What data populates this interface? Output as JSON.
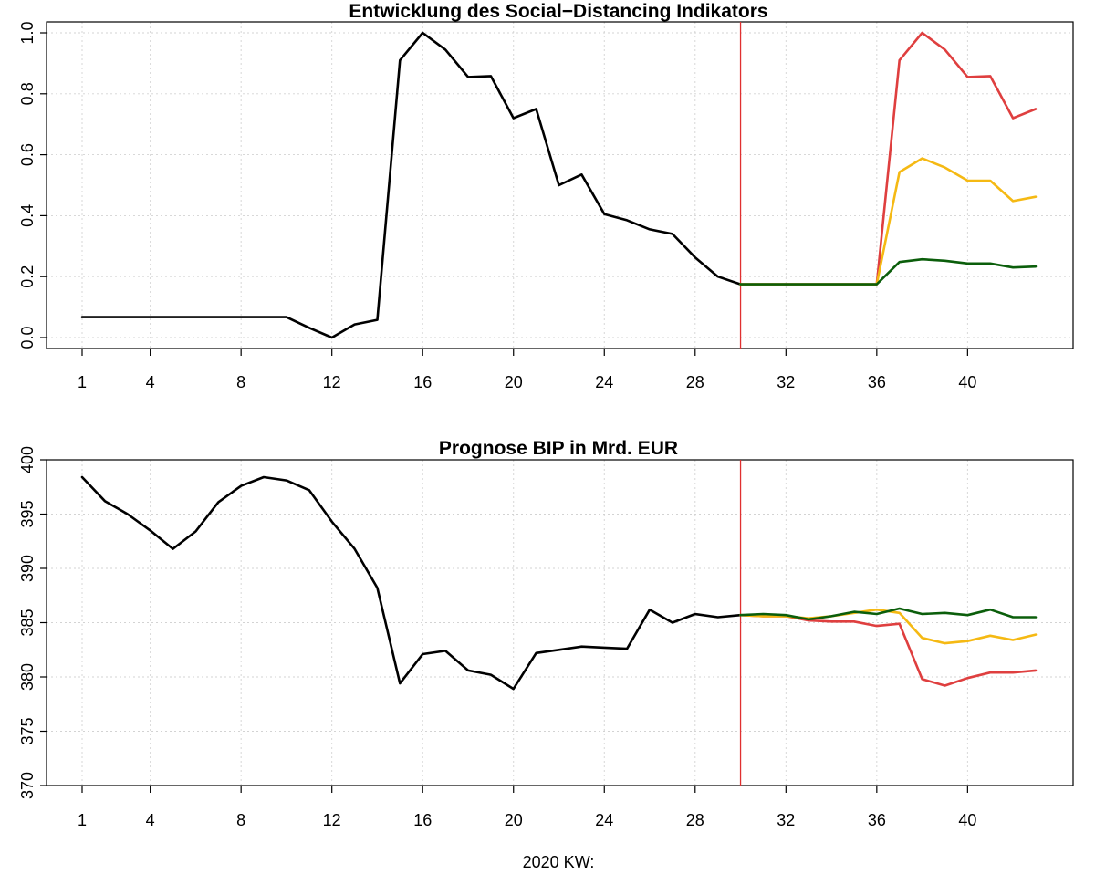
{
  "colors": {
    "history": "#000000",
    "red": "#df3f3f",
    "yellow": "#f5b913",
    "green": "#0b5e0b",
    "vline": "#e03030",
    "grid": "#d3d3d3"
  },
  "xlabel": "2020 KW:",
  "chart_data": [
    {
      "type": "line",
      "title": "Entwicklung des Social−Distancing Indikators",
      "xlim": [
        1,
        43
      ],
      "ylim": [
        0,
        1.0
      ],
      "x_ticks": [
        1,
        4,
        8,
        12,
        16,
        20,
        24,
        28,
        32,
        36,
        40
      ],
      "y_ticks": [
        "0.0",
        "0.2",
        "0.4",
        "0.6",
        "0.8",
        "1.0"
      ],
      "y_tick_values": [
        0,
        0.2,
        0.4,
        0.6,
        0.8,
        1.0
      ],
      "vline_x": 30,
      "grid": true,
      "series": [
        {
          "color_key": "history",
          "x": [
            1,
            2,
            3,
            4,
            5,
            6,
            7,
            8,
            9,
            10,
            11,
            12,
            13,
            14,
            15,
            16,
            17,
            18,
            19,
            20,
            21,
            22,
            23,
            24,
            25,
            26,
            27,
            28,
            29,
            30
          ],
          "values": [
            0.067,
            0.067,
            0.067,
            0.067,
            0.067,
            0.067,
            0.067,
            0.067,
            0.067,
            0.067,
            0.032,
            0.0,
            0.043,
            0.058,
            0.91,
            1.0,
            0.945,
            0.855,
            0.858,
            0.72,
            0.75,
            0.5,
            0.535,
            0.405,
            0.385,
            0.355,
            0.34,
            0.263,
            0.2,
            0.175
          ]
        },
        {
          "color_key": "red",
          "x": [
            30,
            31,
            32,
            33,
            34,
            35,
            36,
            37,
            38,
            39,
            40,
            41,
            42,
            43
          ],
          "values": [
            0.175,
            0.175,
            0.175,
            0.175,
            0.175,
            0.175,
            0.175,
            0.91,
            1.0,
            0.945,
            0.855,
            0.858,
            0.72,
            0.75
          ]
        },
        {
          "color_key": "yellow",
          "x": [
            30,
            31,
            32,
            33,
            34,
            35,
            36,
            37,
            38,
            39,
            40,
            41,
            42,
            43
          ],
          "values": [
            0.175,
            0.175,
            0.175,
            0.175,
            0.175,
            0.175,
            0.175,
            0.543,
            0.588,
            0.558,
            0.515,
            0.515,
            0.448,
            0.462
          ]
        },
        {
          "color_key": "green",
          "x": [
            30,
            31,
            32,
            33,
            34,
            35,
            36,
            37,
            38,
            39,
            40,
            41,
            42,
            43
          ],
          "values": [
            0.175,
            0.175,
            0.175,
            0.175,
            0.175,
            0.175,
            0.175,
            0.248,
            0.257,
            0.252,
            0.243,
            0.243,
            0.23,
            0.233
          ]
        }
      ]
    },
    {
      "type": "line",
      "title": "Prognose BIP in Mrd. EUR",
      "xlim": [
        1,
        43
      ],
      "ylim": [
        370,
        400
      ],
      "x_ticks": [
        1,
        4,
        8,
        12,
        16,
        20,
        24,
        28,
        32,
        36,
        40
      ],
      "y_ticks": [
        "370",
        "375",
        "380",
        "385",
        "390",
        "395",
        "400"
      ],
      "y_tick_values": [
        370,
        375,
        380,
        385,
        390,
        395,
        400
      ],
      "vline_x": 30,
      "grid": true,
      "series": [
        {
          "color_key": "history",
          "x": [
            1,
            2,
            3,
            4,
            5,
            6,
            7,
            8,
            9,
            10,
            11,
            12,
            13,
            14,
            15,
            16,
            17,
            18,
            19,
            20,
            21,
            22,
            23,
            24,
            25,
            26,
            27,
            28,
            29,
            30
          ],
          "values": [
            398.4,
            396.2,
            395.0,
            393.5,
            391.8,
            393.4,
            396.1,
            397.6,
            398.4,
            398.1,
            397.2,
            394.3,
            391.8,
            388.2,
            379.4,
            382.1,
            382.4,
            380.6,
            380.2,
            378.9,
            382.2,
            382.5,
            382.8,
            382.7,
            382.6,
            386.2,
            385.0,
            385.8,
            385.5,
            385.7
          ]
        },
        {
          "color_key": "red",
          "x": [
            30,
            31,
            32,
            33,
            34,
            35,
            36,
            37,
            38,
            39,
            40,
            41,
            42,
            43
          ],
          "values": [
            385.7,
            385.6,
            385.6,
            385.2,
            385.1,
            385.1,
            384.7,
            384.9,
            379.8,
            379.2,
            379.9,
            380.4,
            380.4,
            380.6
          ]
        },
        {
          "color_key": "yellow",
          "x": [
            30,
            31,
            32,
            33,
            34,
            35,
            36,
            37,
            38,
            39,
            40,
            41,
            42,
            43
          ],
          "values": [
            385.7,
            385.6,
            385.6,
            385.4,
            385.6,
            385.9,
            386.2,
            385.9,
            383.6,
            383.1,
            383.3,
            383.8,
            383.4,
            383.9
          ]
        },
        {
          "color_key": "green",
          "x": [
            30,
            31,
            32,
            33,
            34,
            35,
            36,
            37,
            38,
            39,
            40,
            41,
            42,
            43
          ],
          "values": [
            385.7,
            385.8,
            385.7,
            385.3,
            385.6,
            386.0,
            385.8,
            386.3,
            385.8,
            385.9,
            385.7,
            386.2,
            385.5,
            385.5
          ]
        }
      ]
    }
  ]
}
